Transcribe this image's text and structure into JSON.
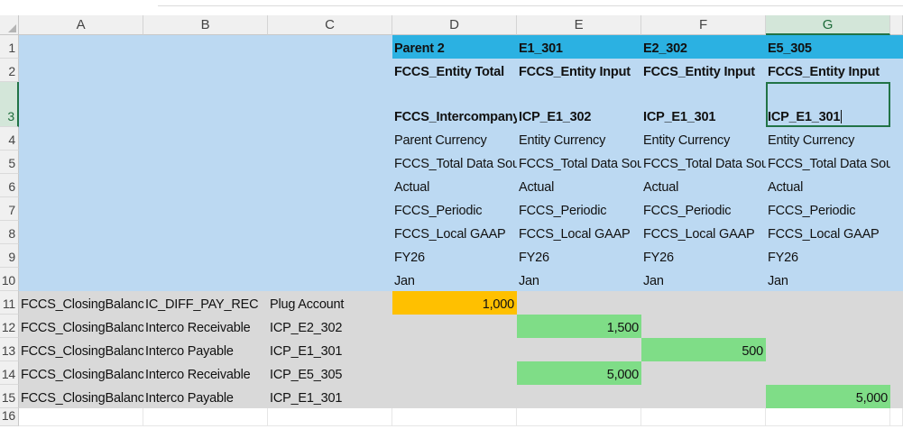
{
  "colors": {
    "header_bg": "#f0f0f0",
    "light_blue": "#bcd9f2",
    "cyan": "#2bb1e2",
    "gray": "#d9d9d9",
    "orange": "#ffc000",
    "green": "#7fdd87",
    "selection": "#217346"
  },
  "sheet": {
    "columns": [
      "A",
      "B",
      "C",
      "D",
      "E",
      "F",
      "G"
    ],
    "selected_column": "G",
    "selected_row": "3",
    "active_cell": "G3",
    "rows": [
      {
        "n": "1",
        "A": "",
        "B": "",
        "C": "",
        "D": "Parent 2",
        "E": "E1_301",
        "F": "E2_302",
        "G": "E5_305"
      },
      {
        "n": "2",
        "A": "",
        "B": "",
        "C": "",
        "D": "FCCS_Entity Total",
        "E": "FCCS_Entity Input",
        "F": "FCCS_Entity Input",
        "G": "FCCS_Entity Input"
      },
      {
        "n": "3",
        "A": "",
        "B": "",
        "C": "",
        "D": "FCCS_Intercompany Top",
        "E": "ICP_E1_302",
        "F": "ICP_E1_301",
        "G": "ICP_E1_301"
      },
      {
        "n": "4",
        "A": "",
        "B": "",
        "C": "",
        "D": "Parent Currency",
        "E": "Entity Currency",
        "F": "Entity Currency",
        "G": "Entity Currency"
      },
      {
        "n": "5",
        "A": "",
        "B": "",
        "C": "",
        "D": "FCCS_Total Data Source",
        "E": "FCCS_Total Data Source",
        "F": "FCCS_Total Data Source",
        "G": "FCCS_Total Data Source"
      },
      {
        "n": "6",
        "A": "",
        "B": "",
        "C": "",
        "D": "Actual",
        "E": "Actual",
        "F": "Actual",
        "G": "Actual"
      },
      {
        "n": "7",
        "A": "",
        "B": "",
        "C": "",
        "D": "FCCS_Periodic",
        "E": "FCCS_Periodic",
        "F": "FCCS_Periodic",
        "G": "FCCS_Periodic"
      },
      {
        "n": "8",
        "A": "",
        "B": "",
        "C": "",
        "D": "FCCS_Local GAAP",
        "E": "FCCS_Local GAAP",
        "F": "FCCS_Local GAAP",
        "G": "FCCS_Local GAAP"
      },
      {
        "n": "9",
        "A": "",
        "B": "",
        "C": "",
        "D": "FY26",
        "E": "FY26",
        "F": "FY26",
        "G": "FY26"
      },
      {
        "n": "10",
        "A": "",
        "B": "",
        "C": "",
        "D": "Jan",
        "E": "Jan",
        "F": "Jan",
        "G": "Jan"
      },
      {
        "n": "11",
        "A": "FCCS_ClosingBalance",
        "B": "IC_DIFF_PAY_REC",
        "C": "Plug Account",
        "D": "1,000",
        "E": "",
        "F": "",
        "G": ""
      },
      {
        "n": "12",
        "A": "FCCS_ClosingBalance",
        "B": "Interco Receivable",
        "C": "ICP_E2_302",
        "D": "",
        "E": "1,500",
        "F": "",
        "G": ""
      },
      {
        "n": "13",
        "A": "FCCS_ClosingBalance",
        "B": "Interco Payable",
        "C": "ICP_E1_301",
        "D": "",
        "E": "",
        "F": "500",
        "G": ""
      },
      {
        "n": "14",
        "A": "FCCS_ClosingBalance",
        "B": "Interco Receivable",
        "C": "ICP_E5_305",
        "D": "",
        "E": "5,000",
        "F": "",
        "G": ""
      },
      {
        "n": "15",
        "A": "FCCS_ClosingBalance",
        "B": "Interco Payable",
        "C": "ICP_E1_301",
        "D": "",
        "E": "",
        "F": "",
        "G": "5,000"
      },
      {
        "n": "16",
        "A": "",
        "B": "",
        "C": "",
        "D": "",
        "E": "",
        "F": "",
        "G": ""
      }
    ]
  }
}
